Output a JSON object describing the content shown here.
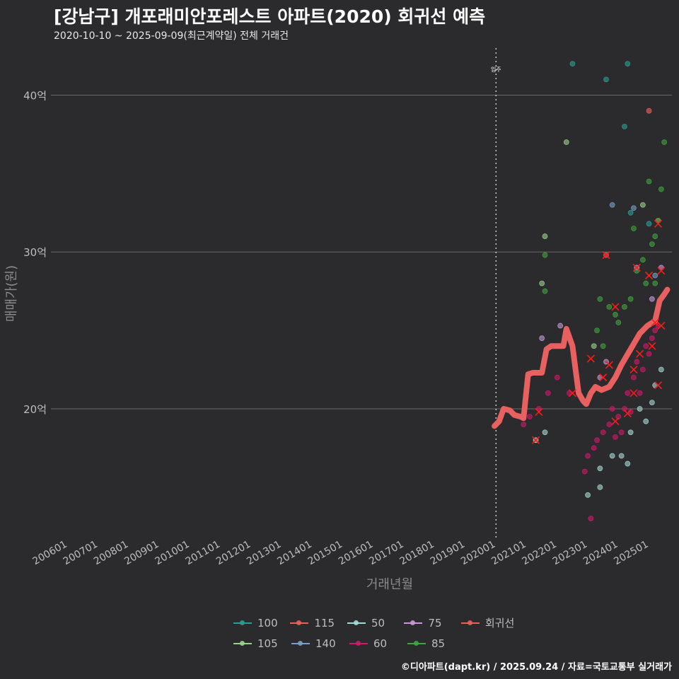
{
  "title": "[강남구] 개포래미안포레스트 아파트(2020) 회귀선 예측",
  "subtitle": "2020-10-10 ~ 2025-09-09(최근계약일) 전체 거래건",
  "footer": "©디아파트(dapt.kr) / 2025.09.24 / 자료=국토교통부 실거래가",
  "chart_data": {
    "type": "scatter",
    "title": "[강남구] 개포래미안포레스트 아파트(2020) 회귀선 예측",
    "xlabel": "거래년월",
    "ylabel": "매매가(원)",
    "x_ticks": [
      "200601",
      "200701",
      "200801",
      "200901",
      "201001",
      "201101",
      "201201",
      "201301",
      "201401",
      "201501",
      "201601",
      "201701",
      "201801",
      "201901",
      "202001",
      "202101",
      "202201",
      "202301",
      "202401",
      "202501"
    ],
    "xlim": [
      2005.45,
      2025.75
    ],
    "y_ticks": [
      {
        "value": 20,
        "label": "20억"
      },
      {
        "value": 30,
        "label": "30억"
      },
      {
        "value": 40,
        "label": "40억"
      }
    ],
    "ylim": [
      11.7,
      43.0
    ],
    "vline": {
      "x": 2020.0,
      "label": "입주"
    },
    "legend_position": "bottom",
    "series": [
      {
        "name": "100",
        "color": "#2e9c93",
        "points": [
          [
            2022.5,
            42.0
          ],
          [
            2023.6,
            41.0
          ],
          [
            2024.3,
            42.0
          ],
          [
            2024.4,
            32.5
          ],
          [
            2024.2,
            38.0
          ],
          [
            2025.0,
            31.8
          ]
        ]
      },
      {
        "name": "105",
        "color": "#9ad18b",
        "points": [
          [
            2021.6,
            31.0
          ],
          [
            2022.3,
            37.0
          ],
          [
            2021.5,
            28.0
          ],
          [
            2023.2,
            24.0
          ],
          [
            2024.8,
            33.0
          ]
        ]
      },
      {
        "name": "115",
        "color": "#e8605f",
        "points": [
          [
            2023.6,
            29.8
          ],
          [
            2025.0,
            39.0
          ],
          [
            2025.3,
            32.0
          ]
        ]
      },
      {
        "name": "140",
        "color": "#7a9ec7",
        "points": [
          [
            2023.8,
            33.0
          ],
          [
            2024.5,
            32.8
          ],
          [
            2025.2,
            28.5
          ]
        ]
      },
      {
        "name": "50",
        "color": "#a6d8d4",
        "points": [
          [
            2021.3,
            18.0
          ],
          [
            2021.6,
            18.5
          ],
          [
            2023.0,
            14.5
          ],
          [
            2023.4,
            15.0
          ],
          [
            2023.4,
            16.2
          ],
          [
            2023.8,
            17.0
          ],
          [
            2024.1,
            17.0
          ],
          [
            2024.3,
            16.5
          ],
          [
            2024.4,
            18.5
          ],
          [
            2024.7,
            20.0
          ],
          [
            2024.9,
            19.2
          ],
          [
            2025.1,
            20.4
          ],
          [
            2025.4,
            22.5
          ],
          [
            2025.2,
            21.5
          ]
        ]
      },
      {
        "name": "60",
        "color": "#d4186c",
        "points": [
          [
            2020.9,
            19.0
          ],
          [
            2021.1,
            19.5
          ],
          [
            2021.4,
            20.0
          ],
          [
            2021.7,
            21.0
          ],
          [
            2022.0,
            22.0
          ],
          [
            2022.4,
            21.0
          ],
          [
            2022.9,
            16.0
          ],
          [
            2023.0,
            17.0
          ],
          [
            2023.1,
            13.0
          ],
          [
            2023.2,
            17.5
          ],
          [
            2023.3,
            18.0
          ],
          [
            2023.5,
            18.5
          ],
          [
            2023.7,
            19.0
          ],
          [
            2023.8,
            20.0
          ],
          [
            2023.9,
            18.2
          ],
          [
            2024.0,
            19.5
          ],
          [
            2024.1,
            18.5
          ],
          [
            2024.2,
            20.0
          ],
          [
            2024.3,
            21.0
          ],
          [
            2024.4,
            19.8
          ],
          [
            2024.5,
            22.0
          ],
          [
            2024.6,
            23.0
          ],
          [
            2024.7,
            21.0
          ],
          [
            2024.8,
            22.5
          ],
          [
            2024.9,
            24.0
          ],
          [
            2025.0,
            23.5
          ],
          [
            2025.1,
            24.5
          ],
          [
            2025.2,
            25.0
          ],
          [
            2025.3,
            25.3
          ]
        ]
      },
      {
        "name": "75",
        "color": "#c49ad6",
        "points": [
          [
            2021.5,
            24.5
          ],
          [
            2022.1,
            25.3
          ],
          [
            2023.4,
            22.0
          ],
          [
            2023.6,
            23.0
          ],
          [
            2024.6,
            29.0
          ],
          [
            2025.1,
            27.0
          ],
          [
            2025.4,
            29.0
          ]
        ]
      },
      {
        "name": "85",
        "color": "#3fa53f",
        "points": [
          [
            2021.6,
            27.5
          ],
          [
            2021.6,
            29.8
          ],
          [
            2023.3,
            25.0
          ],
          [
            2023.4,
            27.0
          ],
          [
            2023.5,
            24.0
          ],
          [
            2023.7,
            26.5
          ],
          [
            2023.9,
            26.0
          ],
          [
            2024.0,
            25.5
          ],
          [
            2024.2,
            26.5
          ],
          [
            2024.4,
            27.0
          ],
          [
            2024.5,
            31.5
          ],
          [
            2024.6,
            28.8
          ],
          [
            2024.8,
            29.5
          ],
          [
            2024.9,
            28.0
          ],
          [
            2025.0,
            34.5
          ],
          [
            2025.1,
            30.5
          ],
          [
            2025.2,
            31.0
          ],
          [
            2025.3,
            32.0
          ],
          [
            2025.4,
            34.0
          ],
          [
            2025.5,
            37.0
          ],
          [
            2025.2,
            28.0
          ]
        ]
      }
    ],
    "regression": {
      "name": "회귀선",
      "color": "#e8605f",
      "points": [
        [
          2019.95,
          18.9
        ],
        [
          2020.1,
          19.2
        ],
        [
          2020.25,
          20.0
        ],
        [
          2020.45,
          19.9
        ],
        [
          2020.6,
          19.6
        ],
        [
          2020.8,
          19.5
        ],
        [
          2020.9,
          19.4
        ],
        [
          2021.05,
          22.2
        ],
        [
          2021.2,
          22.3
        ],
        [
          2021.5,
          22.3
        ],
        [
          2021.65,
          23.8
        ],
        [
          2021.8,
          24.0
        ],
        [
          2022.2,
          24.0
        ],
        [
          2022.3,
          25.1
        ],
        [
          2022.5,
          24.0
        ],
        [
          2022.7,
          21.0
        ],
        [
          2022.85,
          20.5
        ],
        [
          2022.95,
          20.3
        ],
        [
          2023.1,
          21.0
        ],
        [
          2023.25,
          21.4
        ],
        [
          2023.45,
          21.2
        ],
        [
          2023.7,
          21.4
        ],
        [
          2023.9,
          22.0
        ],
        [
          2024.1,
          22.8
        ],
        [
          2024.4,
          23.8
        ],
        [
          2024.7,
          24.8
        ],
        [
          2024.95,
          25.3
        ],
        [
          2025.2,
          25.6
        ],
        [
          2025.35,
          26.9
        ],
        [
          2025.5,
          27.3
        ],
        [
          2025.6,
          27.6
        ]
      ]
    },
    "x_markers": [
      [
        2021.3,
        18.0
      ],
      [
        2021.4,
        19.8
      ],
      [
        2022.5,
        21.0
      ],
      [
        2023.1,
        23.2
      ],
      [
        2023.5,
        22.0
      ],
      [
        2023.7,
        22.8
      ],
      [
        2023.6,
        29.8
      ],
      [
        2023.9,
        26.5
      ],
      [
        2023.9,
        19.2
      ],
      [
        2024.3,
        19.7
      ],
      [
        2024.5,
        21.0
      ],
      [
        2024.5,
        22.5
      ],
      [
        2024.7,
        23.5
      ],
      [
        2024.6,
        29.0
      ],
      [
        2025.0,
        28.5
      ],
      [
        2025.2,
        25.5
      ],
      [
        2025.3,
        31.8
      ],
      [
        2025.4,
        25.3
      ],
      [
        2025.4,
        28.8
      ],
      [
        2025.3,
        21.5
      ],
      [
        2025.1,
        24.0
      ]
    ]
  }
}
